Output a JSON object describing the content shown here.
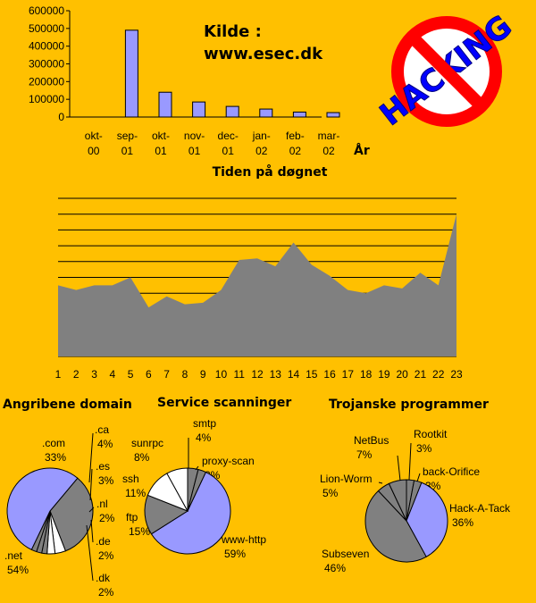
{
  "source": {
    "line1": "Kilde :",
    "line2": "www.esec.dk"
  },
  "logo": {
    "text": "HACKING"
  },
  "bar_chart": {
    "chart_data": {
      "type": "bar",
      "categories": [
        [
          "okt-",
          "00"
        ],
        [
          "sep-",
          "01"
        ],
        [
          "okt-",
          "01"
        ],
        [
          "nov-",
          "01"
        ],
        [
          "dec-",
          "01"
        ],
        [
          "jan-",
          "02"
        ],
        [
          "feb-",
          "02"
        ],
        [
          "mar-",
          "02"
        ]
      ],
      "values": [
        0,
        490000,
        140000,
        85000,
        60000,
        45000,
        28000,
        25000
      ],
      "y_ticks": [
        "0",
        "100000",
        "200000",
        "300000",
        "400000",
        "500000",
        "600000"
      ],
      "ylim": [
        0,
        600000
      ],
      "xlabel": "År",
      "bar_color": "#9999ff"
    }
  },
  "area_chart": {
    "title": "Tiden på døgnet",
    "chart_data": {
      "type": "area",
      "x": [
        "1",
        "2",
        "3",
        "4",
        "5",
        "6",
        "7",
        "8",
        "9",
        "10",
        "11",
        "12",
        "13",
        "14",
        "15",
        "16",
        "17",
        "18",
        "19",
        "20",
        "21",
        "22",
        "23"
      ],
      "values": [
        45,
        42,
        45,
        45,
        50,
        31,
        38,
        33,
        34,
        42,
        61,
        62,
        57,
        72,
        58,
        51,
        42,
        40,
        45,
        43,
        53,
        45,
        90
      ],
      "ylim": [
        0,
        100
      ],
      "grid": true,
      "fill_color": "#808080"
    }
  },
  "pies": [
    {
      "title": "Angribene domain",
      "chart_data": {
        "type": "pie",
        "slices": [
          {
            "label": ".com",
            "pct": "33%",
            "value": 33,
            "color": "#808080"
          },
          {
            "label": ".ca",
            "pct": "4%",
            "value": 4,
            "color": "#ffffff"
          },
          {
            "label": ".es",
            "pct": "3%",
            "value": 3,
            "color": "#ffffff"
          },
          {
            "label": ".nl",
            "pct": "2%",
            "value": 2,
            "color": "#808080"
          },
          {
            "label": ".de",
            "pct": "2%",
            "value": 2,
            "color": "#808080"
          },
          {
            "label": ".dk",
            "pct": "2%",
            "value": 2,
            "color": "#808080"
          },
          {
            "label": ".net",
            "pct": "54%",
            "value": 54,
            "color": "#9999ff"
          }
        ]
      }
    },
    {
      "title": "Service scanninger",
      "chart_data": {
        "type": "pie",
        "slices": [
          {
            "label": "smtp",
            "pct": "4%",
            "value": 4,
            "color": "#808080"
          },
          {
            "label": "proxy-scan",
            "pct": "3%",
            "value": 3,
            "color": "#808080"
          },
          {
            "label": "www-http",
            "pct": "59%",
            "value": 59,
            "color": "#9999ff"
          },
          {
            "label": "ftp",
            "pct": "15%",
            "value": 15,
            "color": "#808080"
          },
          {
            "label": "ssh",
            "pct": "11%",
            "value": 11,
            "color": "#ffffff"
          },
          {
            "label": "sunrpc",
            "pct": "8%",
            "value": 8,
            "color": "#ffffff"
          }
        ]
      }
    },
    {
      "title": "Trojanske programmer",
      "chart_data": {
        "type": "pie",
        "slices": [
          {
            "label": "Rootkit",
            "pct": "3%",
            "value": 3,
            "color": "#808080"
          },
          {
            "label": "back-Orifice",
            "pct": "3%",
            "value": 3,
            "color": "#808080"
          },
          {
            "label": "Hack-A-Tack",
            "pct": "36%",
            "value": 36,
            "color": "#9999ff"
          },
          {
            "label": "Subseven",
            "pct": "46%",
            "value": 46,
            "color": "#808080"
          },
          {
            "label": "Lion-Worm",
            "pct": "5%",
            "value": 5,
            "color": "#808080"
          },
          {
            "label": "NetBus",
            "pct": "7%",
            "value": 7,
            "color": "#808080"
          }
        ]
      }
    }
  ]
}
